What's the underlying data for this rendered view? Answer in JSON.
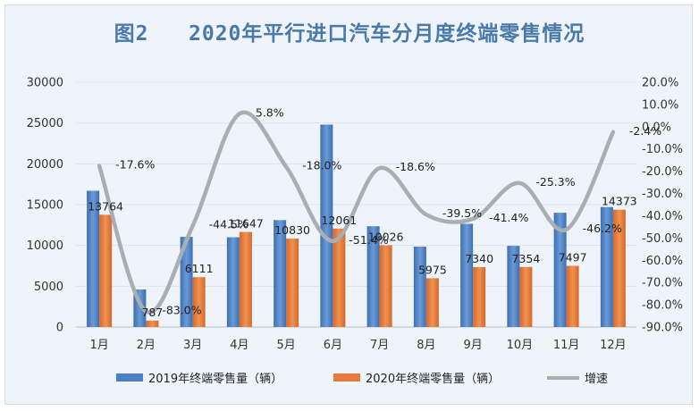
{
  "chart_data": {
    "type": "bar",
    "title": "图2   2020年平行进口汽车分月度终端零售情况",
    "categories": [
      "1月",
      "2月",
      "3月",
      "4月",
      "5月",
      "6月",
      "7月",
      "8月",
      "9月",
      "10月",
      "11月",
      "12月"
    ],
    "series": [
      {
        "name": "2019年终端零售量（辆）",
        "type": "bar",
        "axis": "left",
        "color": "#4a7fc4",
        "values": [
          16700,
          4600,
          11050,
          11000,
          13100,
          24800,
          12350,
          9850,
          12650,
          9950,
          14000,
          14700
        ]
      },
      {
        "name": "2020年终端零售量（辆）",
        "type": "bar",
        "axis": "left",
        "color": "#e8793a",
        "values": [
          13764,
          787,
          6111,
          11647,
          10830,
          12061,
          10026,
          5975,
          7340,
          7354,
          7497,
          14373
        ],
        "labels": [
          "13764",
          "787",
          "6111",
          "11647",
          "10830",
          "12061",
          "10026",
          "5975",
          "7340",
          "7354",
          "7497",
          "14373"
        ]
      },
      {
        "name": "增速",
        "type": "line",
        "axis": "right",
        "color": "#a9aeb3",
        "values": [
          -17.6,
          -83.0,
          -44.5,
          5.8,
          -18.0,
          -51.4,
          -18.6,
          -39.5,
          -41.4,
          -25.3,
          -46.2,
          -2.4
        ],
        "labels": [
          "-17.6%",
          "-83.0%",
          "-44.5%",
          "5.8%",
          "-18.0%",
          "-51.4%",
          "-18.6%",
          "-39.5%",
          "-41.4%",
          "-25.3%",
          "-46.2%",
          "-2.4%"
        ]
      }
    ],
    "y_left": {
      "min": 0,
      "max": 30000,
      "ticks": [
        "0",
        "5000",
        "10000",
        "15000",
        "20000",
        "25000",
        "30000"
      ]
    },
    "y_right": {
      "min": -90,
      "max": 20,
      "ticks": [
        "-90.0%",
        "-80.0%",
        "-70.0%",
        "-60.0%",
        "-50.0%",
        "-40.0%",
        "-30.0%",
        "-20.0%",
        "-10.0%",
        "0.0%",
        "10.0%",
        "20.0%"
      ]
    },
    "grid": true,
    "legend": "bottom"
  }
}
